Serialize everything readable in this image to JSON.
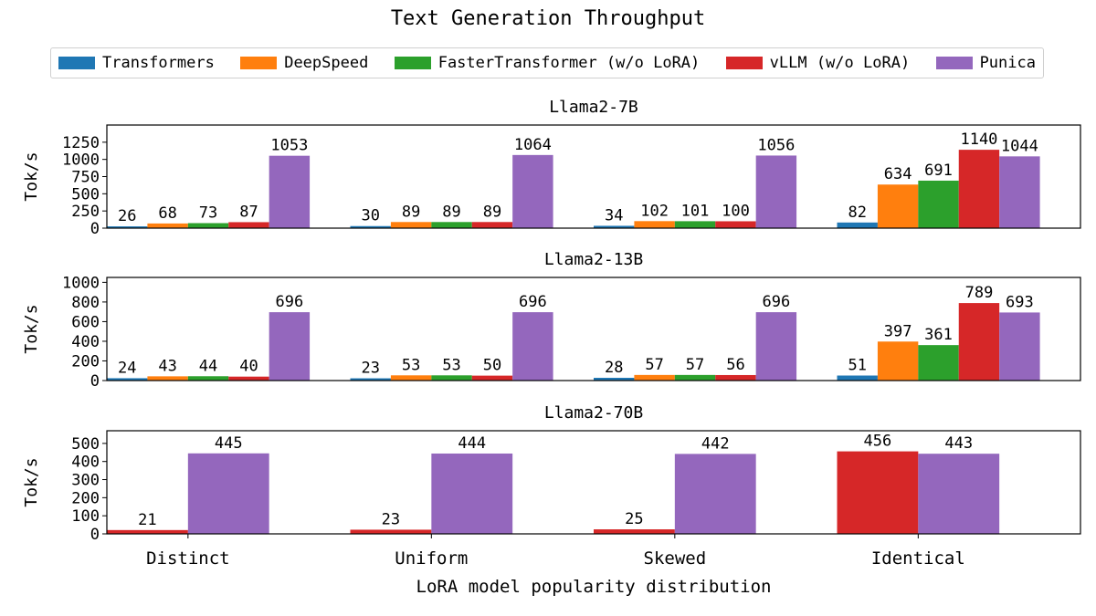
{
  "title": "Text Generation Throughput",
  "xlabel": "LoRA model popularity distribution",
  "colors": {
    "Transformers": "#1f77b4",
    "DeepSpeed": "#ff7f0e",
    "FasterTransformer (w/o LoRA)": "#2ca02c",
    "vLLM (w/o LoRA)": "#d62728",
    "Punica": "#9467bd"
  },
  "legend": [
    "Transformers",
    "DeepSpeed",
    "FasterTransformer (w/o LoRA)",
    "vLLM (w/o LoRA)",
    "Punica"
  ],
  "chart_data": [
    {
      "type": "bar",
      "title": "Llama2-7B",
      "ylabel": "Tok/s",
      "categories": [
        "Distinct",
        "Uniform",
        "Skewed",
        "Identical"
      ],
      "ylim": [
        0,
        1500
      ],
      "yticks": [
        0,
        250,
        500,
        750,
        1000,
        1250
      ],
      "series": [
        {
          "name": "Transformers",
          "values": [
            26,
            30,
            34,
            82
          ]
        },
        {
          "name": "DeepSpeed",
          "values": [
            68,
            89,
            102,
            634
          ]
        },
        {
          "name": "FasterTransformer (w/o LoRA)",
          "values": [
            73,
            89,
            101,
            691
          ]
        },
        {
          "name": "vLLM (w/o LoRA)",
          "values": [
            87,
            89,
            100,
            1140
          ]
        },
        {
          "name": "Punica",
          "values": [
            1053,
            1064,
            1056,
            1044
          ]
        }
      ]
    },
    {
      "type": "bar",
      "title": "Llama2-13B",
      "ylabel": "Tok/s",
      "categories": [
        "Distinct",
        "Uniform",
        "Skewed",
        "Identical"
      ],
      "ylim": [
        0,
        1050
      ],
      "yticks": [
        0,
        200,
        400,
        600,
        800,
        1000
      ],
      "series": [
        {
          "name": "Transformers",
          "values": [
            24,
            23,
            28,
            51
          ]
        },
        {
          "name": "DeepSpeed",
          "values": [
            43,
            53,
            57,
            397
          ]
        },
        {
          "name": "FasterTransformer (w/o LoRA)",
          "values": [
            44,
            53,
            57,
            361
          ]
        },
        {
          "name": "vLLM (w/o LoRA)",
          "values": [
            40,
            50,
            56,
            789
          ]
        },
        {
          "name": "Punica",
          "values": [
            696,
            696,
            696,
            693
          ]
        }
      ]
    },
    {
      "type": "bar",
      "title": "Llama2-70B",
      "ylabel": "Tok/s",
      "categories": [
        "Distinct",
        "Uniform",
        "Skewed",
        "Identical"
      ],
      "ylim": [
        0,
        570
      ],
      "yticks": [
        0,
        100,
        200,
        300,
        400,
        500
      ],
      "series": [
        {
          "name": "vLLM (w/o LoRA)",
          "values": [
            21,
            23,
            25,
            456
          ]
        },
        {
          "name": "Punica",
          "values": [
            445,
            444,
            442,
            443
          ]
        }
      ]
    }
  ]
}
